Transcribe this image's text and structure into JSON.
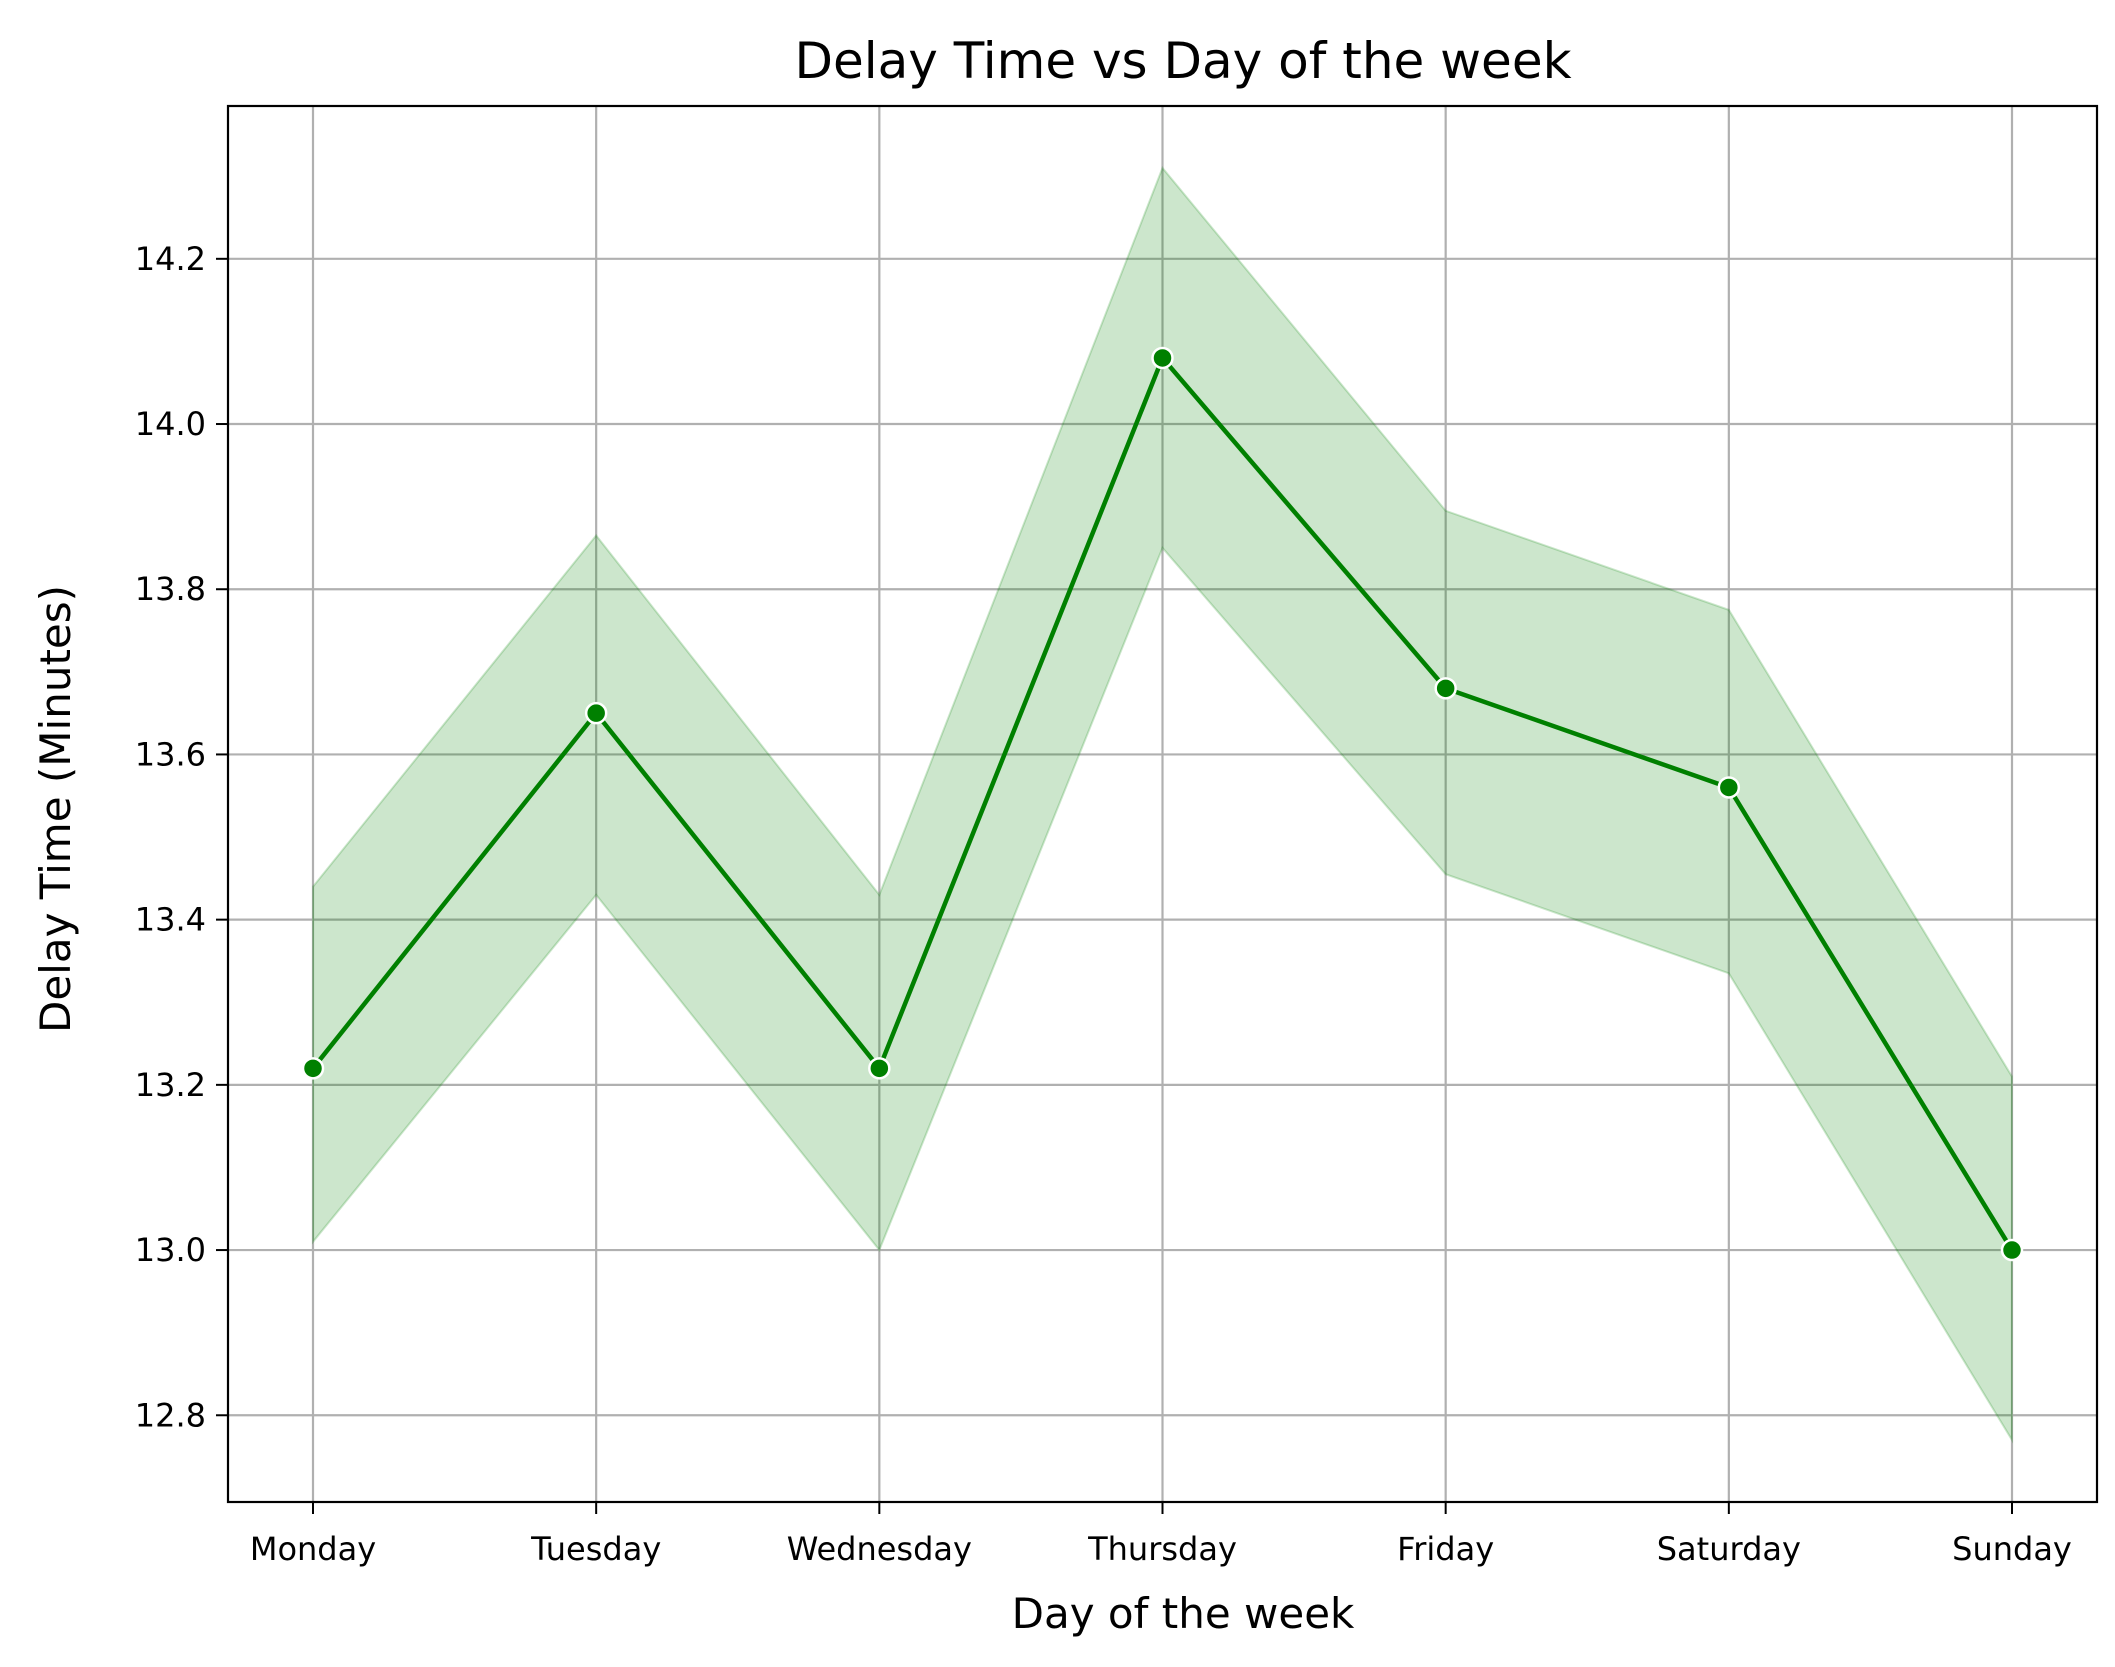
{
  "chart_data": {
    "type": "line",
    "title": "Delay Time vs Day of the week",
    "xlabel": "Day of the week",
    "ylabel": "Delay Time (Minutes)",
    "categories": [
      "Monday",
      "Tuesday",
      "Wednesday",
      "Thursday",
      "Friday",
      "Saturday",
      "Sunday"
    ],
    "values": [
      13.22,
      13.65,
      13.22,
      14.08,
      13.68,
      13.56,
      13.0
    ],
    "ci_lower": [
      13.01,
      13.43,
      13.0,
      13.85,
      13.455,
      13.335,
      12.77
    ],
    "ci_upper": [
      13.44,
      13.865,
      13.43,
      14.31,
      13.895,
      13.775,
      13.21
    ],
    "ylim": [
      12.695,
      14.385
    ],
    "yticks": [
      12.8,
      13.0,
      13.2,
      13.4,
      13.6,
      13.8,
      14.0,
      14.2
    ],
    "grid": true,
    "line_color": "#008000",
    "band_color": "#008000",
    "grid_color": "#b0b0b0"
  }
}
